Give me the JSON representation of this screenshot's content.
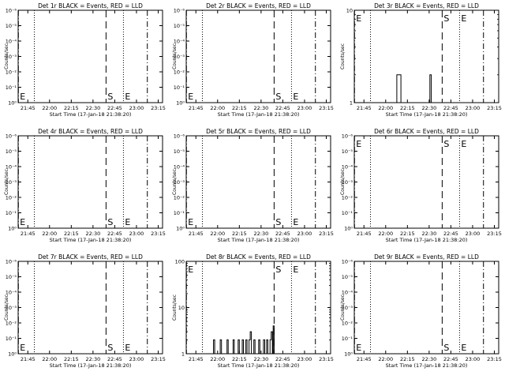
{
  "figure": {
    "panels": [
      {
        "title": "Det 1r BLACK = Events, RED = LLD",
        "x_ticks": [
          "21:45",
          "22:00",
          "22:15",
          "22:30",
          "22:45",
          "23:00",
          "23:15"
        ],
        "x_label": "Start Time (17-Jan-18 21:38:20)",
        "y_label": "Counts/sec",
        "y_ticks": [
          "10⁰",
          "10⁻¹",
          "10⁻²",
          "10⁻³",
          "10⁻⁴",
          "10⁻⁵",
          "10⁻⁶"
        ]
      },
      {
        "title": "Det 2r BLACK = Events, RED = LLD",
        "x_ticks": [
          "21:45",
          "22:00",
          "22:15",
          "22:30",
          "22:45",
          "23:00",
          "23:15"
        ],
        "x_label": "Start Time (17-Jan-18 21:38:20)",
        "y_label": "Counts/sec",
        "y_ticks": [
          "10⁰",
          "10⁻¹",
          "10⁻²",
          "10⁻³",
          "10⁻⁴",
          "10⁻⁵",
          "10⁻⁶"
        ]
      },
      {
        "title": "Det 3r BLACK = Events, RED = LLD",
        "x_ticks": [
          "21:45",
          "22:00",
          "22:15",
          "22:30",
          "22:45",
          "23:00",
          "23:15"
        ],
        "x_label": "Start Time (17-Jan-18 21:38:20)",
        "y_label": "Counts/sec",
        "y_ticks": [
          "1",
          "10"
        ]
      },
      {
        "title": "Det 4r BLACK = Events, RED = LLD",
        "x_ticks": [
          "21:45",
          "22:00",
          "22:15",
          "22:30",
          "22:45",
          "23:00",
          "23:15"
        ],
        "x_label": "Start Time (17-Jan-18 21:38:20)",
        "y_label": "Counts/sec",
        "y_ticks": [
          "10⁰",
          "10⁻¹",
          "10⁻²",
          "10⁻³",
          "10⁻⁴",
          "10⁻⁵",
          "10⁻⁶"
        ]
      },
      {
        "title": "Det 5r BLACK = Events, RED = LLD",
        "x_ticks": [
          "21:45",
          "22:00",
          "22:15",
          "22:30",
          "22:45",
          "23:00",
          "23:15"
        ],
        "x_label": "Start Time (17-Jan-18 21:38:20)",
        "y_label": "Counts/sec",
        "y_ticks": [
          "10⁰",
          "10⁻¹",
          "10⁻²",
          "10⁻³",
          "10⁻⁴",
          "10⁻⁵",
          "10⁻⁶"
        ]
      },
      {
        "title": "Det 6r BLACK = Events, RED = LLD",
        "x_ticks": [
          "21:45",
          "22:00",
          "22:15",
          "22:30",
          "22:45",
          "23:00",
          "23:15"
        ],
        "x_label": "Start Time (17-Jan-18 21:38:20)",
        "y_label": "Counts/sec",
        "y_ticks": [
          "10⁰",
          "10⁻¹",
          "10⁻²",
          "10⁻³",
          "10⁻⁴",
          "10⁻⁵",
          "10⁻⁶"
        ]
      },
      {
        "title": "Det 7r BLACK = Events, RED = LLD",
        "x_ticks": [
          "21:45",
          "22:00",
          "22:15",
          "22:30",
          "22:45",
          "23:00",
          "23:15"
        ],
        "x_label": "Start Time (17-Jan-18 21:38:20)",
        "y_label": "Counts/sec",
        "y_ticks": [
          "10⁰",
          "10⁻¹",
          "10⁻²",
          "10⁻³",
          "10⁻⁴",
          "10⁻⁵",
          "10⁻⁶"
        ]
      },
      {
        "title": "Det 8r BLACK = Events, RED = LLD",
        "x_ticks": [
          "21:45",
          "22:00",
          "22:15",
          "22:30",
          "22:45",
          "23:00",
          "23:15"
        ],
        "x_label": "Start Time (17-Jan-18 21:38:20)",
        "y_label": "Counts/sec",
        "y_ticks": [
          "1",
          "10",
          "100"
        ]
      },
      {
        "title": "Det 9r BLACK = Events, RED = LLD",
        "x_ticks": [
          "21:45",
          "22:00",
          "22:15",
          "22:30",
          "22:45",
          "23:00",
          "23:15"
        ],
        "x_label": "Start Time (17-Jan-18 21:38:20)",
        "y_label": "Counts/sec",
        "y_ticks": [
          "10⁰",
          "10⁻¹",
          "10⁻²",
          "10⁻³",
          "10⁻⁴",
          "10⁻⁵",
          "10⁻⁶"
        ]
      }
    ]
  },
  "chart_data": [
    {
      "type": "line",
      "title": "Det 1r BLACK = Events, RED = LLD",
      "xlabel": "Start Time (17-Jan-18 21:38:20)",
      "ylabel": "Counts/sec",
      "xlim": [
        "21:38:20",
        "23:18:00"
      ],
      "ylim": [
        1,
        1e-06
      ],
      "y_scale": "log",
      "grid": false,
      "series": [],
      "vertical_lines": [
        {
          "time": "21:38:30",
          "label": "E",
          "style": "dash-dot"
        },
        {
          "time": "21:49:30",
          "style": "dotted"
        },
        {
          "time": "22:39:00",
          "label": "S",
          "style": "dashed"
        },
        {
          "time": "22:51:00",
          "label": "E",
          "style": "dotted"
        },
        {
          "time": "23:07:30",
          "style": "dash-dot"
        }
      ]
    },
    {
      "type": "line",
      "title": "Det 2r BLACK = Events, RED = LLD",
      "xlabel": "Start Time (17-Jan-18 21:38:20)",
      "ylabel": "Counts/sec",
      "xlim": [
        "21:38:20",
        "23:18:00"
      ],
      "ylim": [
        1,
        1e-06
      ],
      "y_scale": "log",
      "grid": false,
      "series": [],
      "vertical_lines": [
        {
          "time": "21:38:30",
          "label": "E",
          "style": "dash-dot"
        },
        {
          "time": "21:49:30",
          "style": "dotted"
        },
        {
          "time": "22:39:00",
          "label": "S",
          "style": "dashed"
        },
        {
          "time": "22:51:00",
          "label": "E",
          "style": "dotted"
        },
        {
          "time": "23:07:30",
          "style": "dash-dot"
        }
      ]
    },
    {
      "type": "line",
      "title": "Det 3r BLACK = Events, RED = LLD",
      "xlabel": "Start Time (17-Jan-18 21:38:20)",
      "ylabel": "Counts/sec",
      "xlim": [
        "21:38:20",
        "23:18:00"
      ],
      "ylim": [
        1,
        10
      ],
      "y_scale": "log",
      "grid": false,
      "series": [
        {
          "color": "#000000",
          "points": [
            [
              "21:38:20",
              0
            ],
            [
              "22:07:40",
              0
            ],
            [
              "22:07:40",
              2
            ],
            [
              "22:10:30",
              2
            ],
            [
              "22:10:30",
              0
            ],
            [
              "22:30:30",
              0
            ],
            [
              "22:30:30",
              2
            ],
            [
              "22:31:30",
              2
            ],
            [
              "22:31:30",
              0
            ],
            [
              "23:18:00",
              0
            ]
          ]
        }
      ],
      "vertical_lines": [
        {
          "time": "21:38:30",
          "label": "E",
          "style": "dash-dot"
        },
        {
          "time": "21:49:30",
          "style": "dotted"
        },
        {
          "time": "22:39:00",
          "label": "S",
          "style": "dashed"
        },
        {
          "time": "22:51:00",
          "label": "E",
          "style": "dotted"
        },
        {
          "time": "23:07:30",
          "style": "dash-dot"
        }
      ]
    },
    {
      "type": "line",
      "title": "Det 4r BLACK = Events, RED = LLD",
      "xlabel": "Start Time (17-Jan-18 21:38:20)",
      "ylabel": "Counts/sec",
      "xlim": [
        "21:38:20",
        "23:18:00"
      ],
      "ylim": [
        1,
        1e-06
      ],
      "y_scale": "log",
      "grid": false,
      "series": [],
      "vertical_lines": [
        {
          "time": "21:38:30",
          "label": "E",
          "style": "dash-dot"
        },
        {
          "time": "21:49:30",
          "style": "dotted"
        },
        {
          "time": "22:39:00",
          "label": "S",
          "style": "dashed"
        },
        {
          "time": "22:51:00",
          "label": "E",
          "style": "dotted"
        },
        {
          "time": "23:07:30",
          "style": "dash-dot"
        }
      ]
    },
    {
      "type": "line",
      "title": "Det 5r BLACK = Events, RED = LLD",
      "xlabel": "Start Time (17-Jan-18 21:38:20)",
      "ylabel": "Counts/sec",
      "xlim": [
        "21:38:20",
        "23:18:00"
      ],
      "ylim": [
        1,
        1e-06
      ],
      "y_scale": "log",
      "grid": false,
      "series": [],
      "vertical_lines": [
        {
          "time": "21:38:30",
          "label": "E",
          "style": "dash-dot"
        },
        {
          "time": "21:49:30",
          "style": "dotted"
        },
        {
          "time": "22:39:00",
          "label": "S",
          "style": "dashed"
        },
        {
          "time": "22:51:00",
          "label": "E",
          "style": "dotted"
        },
        {
          "time": "23:07:30",
          "style": "dash-dot"
        }
      ]
    },
    {
      "type": "line",
      "title": "Det 6r BLACK = Events, RED = LLD",
      "xlabel": "Start Time (17-Jan-18 21:38:20)",
      "ylabel": "Counts/sec",
      "xlim": [
        "21:38:20",
        "23:18:00"
      ],
      "ylim": [
        1,
        1e-06
      ],
      "y_scale": "log",
      "grid": false,
      "series": [],
      "vertical_lines": [
        {
          "time": "21:38:30",
          "label": "E",
          "style": "dash-dot"
        },
        {
          "time": "21:49:30",
          "style": "dotted"
        },
        {
          "time": "22:39:00",
          "label": "S",
          "style": "dashed"
        },
        {
          "time": "22:51:00",
          "label": "E",
          "style": "dotted"
        },
        {
          "time": "23:07:30",
          "style": "dash-dot"
        }
      ]
    },
    {
      "type": "line",
      "title": "Det 7r BLACK = Events, RED = LLD",
      "xlabel": "Start Time (17-Jan-18 21:38:20)",
      "ylabel": "Counts/sec",
      "xlim": [
        "21:38:20",
        "23:18:00"
      ],
      "ylim": [
        1,
        1e-06
      ],
      "y_scale": "log",
      "grid": false,
      "series": [],
      "vertical_lines": [
        {
          "time": "21:38:30",
          "label": "E",
          "style": "dash-dot"
        },
        {
          "time": "21:49:30",
          "style": "dotted"
        },
        {
          "time": "22:39:00",
          "label": "S",
          "style": "dashed"
        },
        {
          "time": "22:51:00",
          "label": "E",
          "style": "dotted"
        },
        {
          "time": "23:07:30",
          "style": "dash-dot"
        }
      ]
    },
    {
      "type": "line",
      "title": "Det 8r BLACK = Events, RED = LLD",
      "xlabel": "Start Time (17-Jan-18 21:38:20)",
      "ylabel": "Counts/sec",
      "xlim": [
        "21:38:20",
        "23:18:00"
      ],
      "ylim": [
        1,
        100
      ],
      "y_scale": "log",
      "grid": false,
      "series": [
        {
          "color": "#000000",
          "points": [
            [
              "21:38:20",
              0
            ],
            [
              "21:57:10",
              0
            ],
            [
              "21:57:10",
              2
            ],
            [
              "21:58:00",
              2
            ],
            [
              "21:58:00",
              0
            ],
            [
              "22:01:50",
              0
            ],
            [
              "22:01:50",
              2
            ],
            [
              "22:02:40",
              2
            ],
            [
              "22:02:40",
              0
            ],
            [
              "22:06:30",
              0
            ],
            [
              "22:06:30",
              2
            ],
            [
              "22:07:20",
              2
            ],
            [
              "22:07:20",
              0
            ],
            [
              "22:10:40",
              0
            ],
            [
              "22:10:40",
              2
            ],
            [
              "22:11:30",
              2
            ],
            [
              "22:11:30",
              0
            ],
            [
              "22:14:10",
              0
            ],
            [
              "22:14:10",
              2
            ],
            [
              "22:15:00",
              2
            ],
            [
              "22:15:00",
              0
            ],
            [
              "22:17:00",
              0
            ],
            [
              "22:17:00",
              2
            ],
            [
              "22:17:50",
              2
            ],
            [
              "22:17:50",
              0
            ],
            [
              "22:19:30",
              0
            ],
            [
              "22:19:30",
              2
            ],
            [
              "22:20:20",
              2
            ],
            [
              "22:20:20",
              0
            ],
            [
              "22:21:40",
              0
            ],
            [
              "22:21:40",
              2
            ],
            [
              "22:22:30",
              2
            ],
            [
              "22:22:30",
              3
            ],
            [
              "22:23:20",
              3
            ],
            [
              "22:23:20",
              0
            ],
            [
              "22:25:00",
              0
            ],
            [
              "22:25:00",
              2
            ],
            [
              "22:25:50",
              2
            ],
            [
              "22:25:50",
              0
            ],
            [
              "22:28:20",
              0
            ],
            [
              "22:28:20",
              2
            ],
            [
              "22:29:10",
              2
            ],
            [
              "22:29:10",
              0
            ],
            [
              "22:31:40",
              0
            ],
            [
              "22:31:40",
              2
            ],
            [
              "22:32:30",
              2
            ],
            [
              "22:32:30",
              0
            ],
            [
              "22:33:50",
              0
            ],
            [
              "22:33:50",
              2
            ],
            [
              "22:34:40",
              2
            ],
            [
              "22:34:40",
              0
            ],
            [
              "22:36:10",
              0
            ],
            [
              "22:36:10",
              2
            ],
            [
              "22:37:00",
              2
            ],
            [
              "22:37:00",
              3
            ],
            [
              "22:37:50",
              3
            ],
            [
              "22:37:50",
              0
            ],
            [
              "22:38:20",
              0
            ],
            [
              "22:38:20",
              4
            ],
            [
              "22:39:00",
              4
            ],
            [
              "22:39:00",
              0
            ],
            [
              "23:18:00",
              0
            ]
          ]
        }
      ],
      "vertical_lines": [
        {
          "time": "21:38:30",
          "label": "E",
          "style": "dash-dot"
        },
        {
          "time": "21:49:30",
          "style": "dotted"
        },
        {
          "time": "22:39:00",
          "label": "S",
          "style": "dashed"
        },
        {
          "time": "22:51:00",
          "label": "E",
          "style": "dotted"
        },
        {
          "time": "23:07:30",
          "style": "dash-dot"
        }
      ]
    },
    {
      "type": "line",
      "title": "Det 9r BLACK = Events, RED = LLD",
      "xlabel": "Start Time (17-Jan-18 21:38:20)",
      "ylabel": "Counts/sec",
      "xlim": [
        "21:38:20",
        "23:18:00"
      ],
      "ylim": [
        1,
        1e-06
      ],
      "y_scale": "log",
      "grid": false,
      "series": [],
      "vertical_lines": [
        {
          "time": "21:38:30",
          "label": "E",
          "style": "dash-dot"
        },
        {
          "time": "21:49:30",
          "style": "dotted"
        },
        {
          "time": "22:39:00",
          "label": "S",
          "style": "dashed"
        },
        {
          "time": "22:51:00",
          "label": "E",
          "style": "dotted"
        },
        {
          "time": "23:07:30",
          "style": "dash-dot"
        }
      ]
    }
  ]
}
